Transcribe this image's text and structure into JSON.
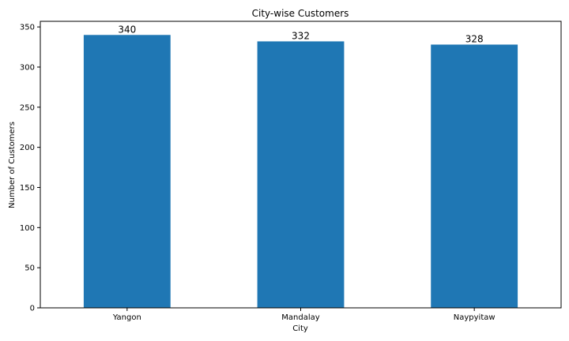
{
  "chart_data": {
    "type": "bar",
    "title": "City-wise Customers",
    "xlabel": "City",
    "ylabel": "Number of Customers",
    "categories": [
      "Yangon",
      "Mandalay",
      "Naypyitaw"
    ],
    "values": [
      340,
      332,
      328
    ],
    "data_labels": [
      "340",
      "332",
      "328"
    ],
    "ylim": [
      0,
      357
    ],
    "yticks": [
      0,
      50,
      100,
      150,
      200,
      250,
      300,
      350
    ],
    "ytick_labels": [
      "0",
      "50",
      "100",
      "150",
      "200",
      "250",
      "300",
      "350"
    ],
    "bar_color": "#1f77b4",
    "grid": false,
    "legend": "none"
  }
}
